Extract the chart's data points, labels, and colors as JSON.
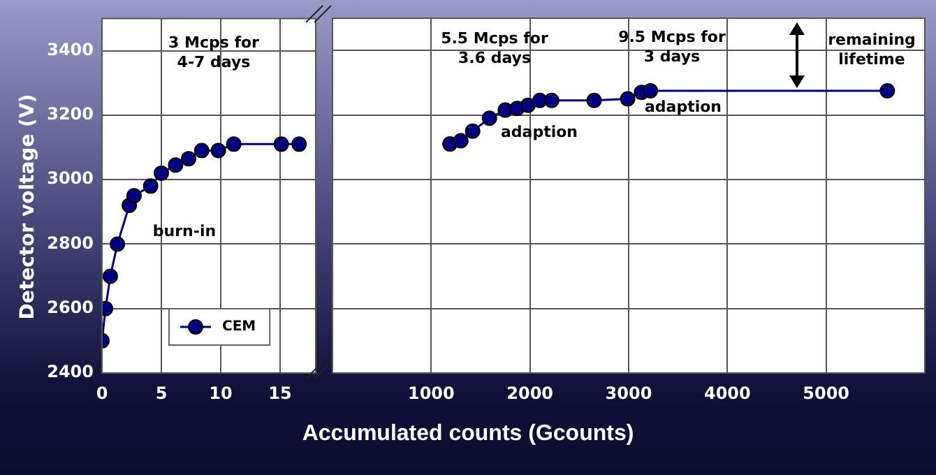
{
  "chart_data": [
    {
      "type": "line",
      "ylabel": "Detector voltage (V)",
      "xlabel": "Accumulated counts (Gcounts)",
      "xlim": [
        0,
        18
      ],
      "xticks": [
        0,
        5,
        10,
        15
      ],
      "ylim": [
        2400,
        3500
      ],
      "yticks": [
        2400,
        2600,
        2800,
        3000,
        3200,
        3400
      ],
      "grid": true,
      "marker": "circle",
      "legend": "bottom left",
      "series": [
        {
          "name": "CEM",
          "color": "#000080",
          "x": [
            0,
            0.3,
            0.7,
            1.3,
            2.3,
            2.7,
            4.1,
            5.0,
            6.2,
            7.3,
            8.4,
            9.8,
            11.1,
            15.1,
            16.6
          ],
          "values": [
            2500,
            2600,
            2700,
            2800,
            2920,
            2950,
            2980,
            3020,
            3045,
            3065,
            3090,
            3090,
            3110,
            3110,
            3110
          ]
        }
      ],
      "annotations": [
        "3 Mcps for\n4-7 days",
        "burn-in"
      ]
    },
    {
      "type": "line",
      "xlim": [
        0,
        6000
      ],
      "xticks": [
        1000,
        2000,
        3000,
        4000,
        5000
      ],
      "ylim": [
        2400,
        3500
      ],
      "yticks": [
        2400,
        2600,
        2800,
        3000,
        3200,
        3400
      ],
      "grid": true,
      "marker": "circle",
      "tick_labels": "x",
      "series": [
        {
          "color": "#000080",
          "x": [
            1190,
            1300,
            1420,
            1590,
            1750,
            1870,
            1980,
            2100,
            2220,
            2650,
            2990,
            3130,
            3220,
            5620
          ],
          "values": [
            3110,
            3120,
            3150,
            3190,
            3215,
            3220,
            3230,
            3245,
            3245,
            3245,
            3250,
            3270,
            3275,
            3275
          ]
        }
      ],
      "annotations": [
        "5.5 Mcps for\n3.6 days",
        "adaption",
        "9.5 Mcps for\n3 days",
        "adaption",
        "remaining\nlifetime"
      ]
    }
  ]
}
